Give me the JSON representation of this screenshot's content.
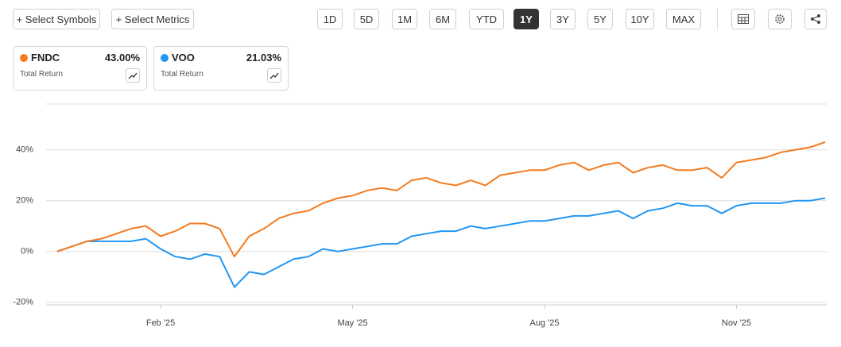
{
  "toolbar": {
    "buttons": [
      "+ Select Symbols",
      "+ Select Metrics"
    ],
    "ranges": [
      "1D",
      "5D",
      "1M",
      "6M",
      "YTD",
      "1Y",
      "3Y",
      "5Y",
      "10Y",
      "MAX"
    ],
    "active_range": 5
  },
  "cards": [
    {
      "value": "43.00%",
      "metric": "Total Return"
    },
    {
      "value": "21.03%",
      "metric": "Total Return"
    }
  ],
  "chart_data": {
    "type": "line",
    "categories": [
      null,
      null,
      null,
      null,
      null,
      null,
      null,
      "Feb '25",
      null,
      null,
      null,
      null,
      null,
      null,
      null,
      null,
      null,
      null,
      null,
      null,
      "May '25",
      null,
      null,
      null,
      null,
      null,
      null,
      null,
      null,
      null,
      null,
      null,
      null,
      "Aug '25",
      null,
      null,
      null,
      null,
      null,
      null,
      null,
      null,
      null,
      null,
      null,
      null,
      "Nov '25",
      null,
      null,
      null,
      null,
      null,
      null
    ],
    "series": [
      {
        "name": "FNDC",
        "color": "#f47b20",
        "values": [
          0,
          2,
          4,
          5,
          7,
          9,
          10,
          6,
          8,
          11,
          11,
          9,
          -2,
          6,
          9,
          13,
          15,
          16,
          19,
          21,
          22,
          24,
          25,
          24,
          28,
          29,
          27,
          26,
          28,
          26,
          30,
          31,
          32,
          32,
          34,
          35,
          32,
          34,
          35,
          31,
          33,
          34,
          32,
          32,
          33,
          29,
          35,
          36,
          37,
          39,
          40,
          41,
          43
        ]
      },
      {
        "name": "VOO",
        "color": "#2196f3",
        "values": [
          0,
          2,
          4,
          4,
          4,
          4,
          5,
          1,
          -2,
          -3,
          -1,
          -2,
          -14,
          -8,
          -9,
          -6,
          -3,
          -2,
          1,
          0,
          1,
          2,
          3,
          3,
          6,
          7,
          8,
          8,
          10,
          9,
          10,
          11,
          12,
          12,
          13,
          14,
          14,
          15,
          16,
          13,
          16,
          17,
          19,
          18,
          18,
          15,
          18,
          19,
          19,
          19,
          20,
          20,
          21
        ]
      }
    ],
    "ylim": [
      -21,
      58
    ],
    "yticks": [
      {
        "value": -20,
        "label": "-20%"
      },
      {
        "value": 0,
        "label": "0%"
      },
      {
        "value": 20,
        "label": "20%"
      },
      {
        "value": 40,
        "label": "40%"
      }
    ],
    "grid": true
  }
}
